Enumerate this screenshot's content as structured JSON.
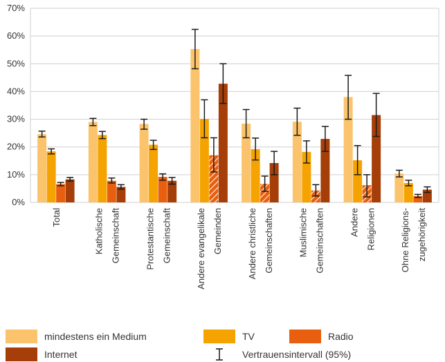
{
  "chart_data": {
    "type": "bar",
    "ylim": [
      0,
      70
    ],
    "yticks": [
      "0%",
      "10%",
      "20%",
      "30%",
      "40%",
      "50%",
      "60%",
      "70%"
    ],
    "grid": "horizontal",
    "legend_position": "bottom",
    "categories": [
      [
        "Total"
      ],
      [
        "Katholische",
        "Gemeinschaft"
      ],
      [
        "Protestantische",
        "Gemeinschaft"
      ],
      [
        "Andere evangelikale",
        "Gemeinden"
      ],
      [
        "Andere christliche",
        "Gemeinschaften"
      ],
      [
        "Muslimische",
        "Gemeinschaften"
      ],
      [
        "Andere",
        "Religionen"
      ],
      [
        "Ohne Religions-",
        "zugehörigkeit"
      ]
    ],
    "series": [
      {
        "name": "mindestens ein Medium",
        "color": "#FBC36B",
        "values": [
          24.6,
          29.0,
          28.3,
          55.3,
          28.4,
          29.1,
          38.0,
          10.4
        ],
        "ci_low": [
          23.6,
          27.7,
          26.4,
          48.2,
          23.3,
          24.2,
          30.0,
          9.2
        ],
        "ci_high": [
          25.7,
          30.3,
          30.0,
          62.4,
          33.5,
          34.0,
          45.8,
          11.6
        ]
      },
      {
        "name": "TV",
        "color": "#F5A300",
        "values": [
          18.4,
          24.3,
          20.8,
          30.1,
          19.2,
          18.2,
          15.2,
          7.0
        ],
        "ci_low": [
          17.5,
          23.0,
          19.1,
          23.3,
          15.3,
          14.2,
          10.0,
          6.0
        ],
        "ci_high": [
          19.3,
          25.6,
          22.4,
          37.0,
          23.2,
          22.2,
          20.5,
          8.0
        ]
      },
      {
        "name": "Radio",
        "color": "#E8600F",
        "values": [
          6.6,
          7.8,
          9.2,
          17.0,
          6.7,
          4.3,
          6.2,
          2.3
        ],
        "ci_low": [
          6.0,
          7.0,
          8.0,
          11.0,
          4.0,
          2.3,
          2.0,
          1.8
        ],
        "ci_high": [
          7.2,
          8.8,
          10.3,
          23.3,
          9.5,
          6.4,
          10.0,
          2.9
        ],
        "hatched": [
          false,
          false,
          false,
          true,
          true,
          true,
          true,
          false
        ]
      },
      {
        "name": "Internet",
        "color": "#A53E08",
        "values": [
          8.3,
          5.6,
          7.8,
          42.8,
          14.2,
          22.9,
          31.5,
          4.6
        ],
        "ci_low": [
          7.7,
          4.8,
          6.6,
          35.7,
          10.0,
          18.4,
          23.8,
          3.6
        ],
        "ci_high": [
          9.0,
          6.4,
          9.0,
          50.0,
          18.4,
          27.4,
          39.3,
          5.6
        ]
      }
    ]
  },
  "legend": {
    "medium": "mindestens ein Medium",
    "tv": "TV",
    "radio": "Radio",
    "internet": "Internet",
    "ci": "Vertrauensintervall (95%)"
  }
}
